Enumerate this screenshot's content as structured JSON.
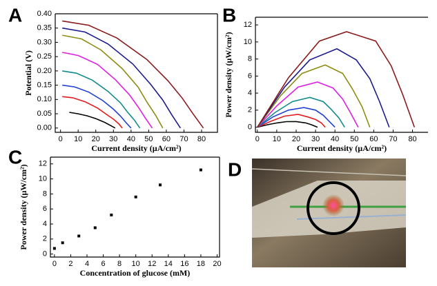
{
  "chart_data": [
    {
      "type": "line",
      "panel_label": "A",
      "x_label": "Current density (µA/cm²)",
      "y_label": "Potential (V)",
      "xlim": [
        -3,
        89
      ],
      "ylim": [
        -0.015,
        0.4
      ],
      "xticks": [
        0,
        10,
        20,
        30,
        40,
        50,
        60,
        70,
        80
      ],
      "yticks": [
        {
          "value": 0,
          "label": "0.00"
        },
        {
          "value": 0.05,
          "label": "0.05"
        },
        {
          "value": 0.1,
          "label": "0.10"
        },
        {
          "value": 0.15,
          "label": "0.15"
        },
        {
          "value": 0.2,
          "label": "0.20"
        },
        {
          "value": 0.25,
          "label": "0.25"
        },
        {
          "value": 0.3,
          "label": "0.30"
        },
        {
          "value": 0.35,
          "label": "0.35"
        },
        {
          "value": 0.4,
          "label": "0.40"
        }
      ],
      "series": [
        {
          "color": "#000000",
          "x": [
            5,
            10,
            15,
            20,
            25,
            28,
            31
          ],
          "values": [
            0.055,
            0.05,
            0.043,
            0.033,
            0.02,
            0.01,
            0
          ]
        },
        {
          "color": "#e41a1c",
          "x": [
            1,
            7,
            14,
            21,
            26,
            30,
            33,
            35
          ],
          "values": [
            0.11,
            0.106,
            0.092,
            0.07,
            0.048,
            0.031,
            0.015,
            0
          ]
        },
        {
          "color": "#1f3fd6",
          "x": [
            1,
            8,
            16,
            24,
            30,
            34,
            37,
            40
          ],
          "values": [
            0.15,
            0.144,
            0.126,
            0.096,
            0.066,
            0.042,
            0.02,
            0
          ]
        },
        {
          "color": "#138a8a",
          "x": [
            1,
            9,
            18,
            27,
            34,
            38,
            42,
            45
          ],
          "values": [
            0.2,
            0.192,
            0.168,
            0.128,
            0.088,
            0.056,
            0.027,
            0
          ]
        },
        {
          "color": "#e01ee0",
          "x": [
            1,
            10,
            21,
            31,
            39,
            44,
            48,
            52
          ],
          "values": [
            0.265,
            0.254,
            0.223,
            0.17,
            0.117,
            0.074,
            0.036,
            0
          ]
        },
        {
          "color": "#8c8c10",
          "x": [
            1,
            12,
            23,
            35,
            44,
            49,
            54,
            58
          ],
          "values": [
            0.325,
            0.312,
            0.273,
            0.208,
            0.143,
            0.091,
            0.044,
            0
          ]
        },
        {
          "color": "#1a1a8c",
          "x": [
            1,
            14,
            27,
            41,
            51,
            58,
            63,
            68
          ],
          "values": [
            0.35,
            0.336,
            0.294,
            0.224,
            0.154,
            0.098,
            0.047,
            0
          ]
        },
        {
          "color": "#8b1a1a",
          "x": [
            1,
            16,
            32,
            49,
            61,
            69,
            75,
            81
          ],
          "values": [
            0.375,
            0.36,
            0.315,
            0.24,
            0.165,
            0.105,
            0.051,
            0
          ]
        }
      ]
    },
    {
      "type": "line",
      "panel_label": "B",
      "x_label": "Current density (µA/cm²)",
      "y_label": "Power density (µW/cm²)",
      "xlim": [
        -1,
        88
      ],
      "ylim": [
        -0.6,
        12.9
      ],
      "xticks": [
        0,
        10,
        20,
        30,
        40,
        50,
        60,
        70,
        80
      ],
      "yticks": [
        0,
        2,
        4,
        6,
        8,
        10,
        12
      ],
      "series": [
        {
          "color": "#000000",
          "x": [
            0,
            5,
            10,
            15,
            20,
            25,
            28,
            31
          ],
          "values": [
            0,
            0.28,
            0.5,
            0.65,
            0.66,
            0.5,
            0.28,
            0
          ]
        },
        {
          "color": "#e41a1c",
          "x": [
            0,
            7,
            14,
            21,
            26,
            30,
            33,
            35
          ],
          "values": [
            0,
            0.7,
            1.3,
            1.5,
            1.2,
            0.9,
            0.5,
            0
          ]
        },
        {
          "color": "#1f3fd6",
          "x": [
            0,
            8,
            16,
            24,
            30,
            34,
            37,
            40
          ],
          "values": [
            0,
            1.2,
            2.0,
            2.3,
            2.0,
            1.4,
            0.7,
            0
          ]
        },
        {
          "color": "#138a8a",
          "x": [
            0,
            9,
            18,
            27,
            34,
            38,
            42,
            45
          ],
          "values": [
            0,
            1.7,
            3.0,
            3.5,
            3.0,
            2.1,
            1.1,
            0
          ]
        },
        {
          "color": "#e01ee0",
          "x": [
            0,
            10,
            21,
            31,
            39,
            44,
            48,
            52
          ],
          "values": [
            0,
            2.5,
            4.7,
            5.3,
            4.6,
            3.3,
            1.7,
            0
          ]
        },
        {
          "color": "#8c8c10",
          "x": [
            0,
            12,
            23,
            35,
            44,
            49,
            54,
            58
          ],
          "values": [
            0,
            3.7,
            6.3,
            7.3,
            6.3,
            4.5,
            2.4,
            0
          ]
        },
        {
          "color": "#1a1a8c",
          "x": [
            0,
            14,
            27,
            41,
            51,
            58,
            63,
            68
          ],
          "values": [
            0,
            4.7,
            7.9,
            9.2,
            7.9,
            5.7,
            3.0,
            0
          ]
        },
        {
          "color": "#8b1a1a",
          "x": [
            0,
            16,
            32,
            46,
            61,
            69,
            75,
            81
          ],
          "values": [
            0,
            5.8,
            10.1,
            11.2,
            10.1,
            7.2,
            3.8,
            0
          ]
        }
      ]
    },
    {
      "type": "scatter",
      "panel_label": "C",
      "x_label": "Concentration of glucose (mM)",
      "y_label": "Power density (µW/cm²)",
      "xlim": [
        -0.5,
        20.3
      ],
      "ylim": [
        -0.4,
        12.9
      ],
      "xticks": [
        0,
        2,
        4,
        6,
        8,
        10,
        12,
        14,
        16,
        18,
        20
      ],
      "yticks": [
        0,
        2,
        4,
        6,
        8,
        10,
        12
      ],
      "color": "#000000",
      "x": [
        0,
        1,
        3,
        5,
        7,
        10,
        13,
        18
      ],
      "values": [
        0.75,
        1.5,
        2.4,
        3.5,
        5.2,
        7.6,
        9.2,
        11.2
      ]
    }
  ],
  "photo_panel": {
    "label": "D"
  }
}
